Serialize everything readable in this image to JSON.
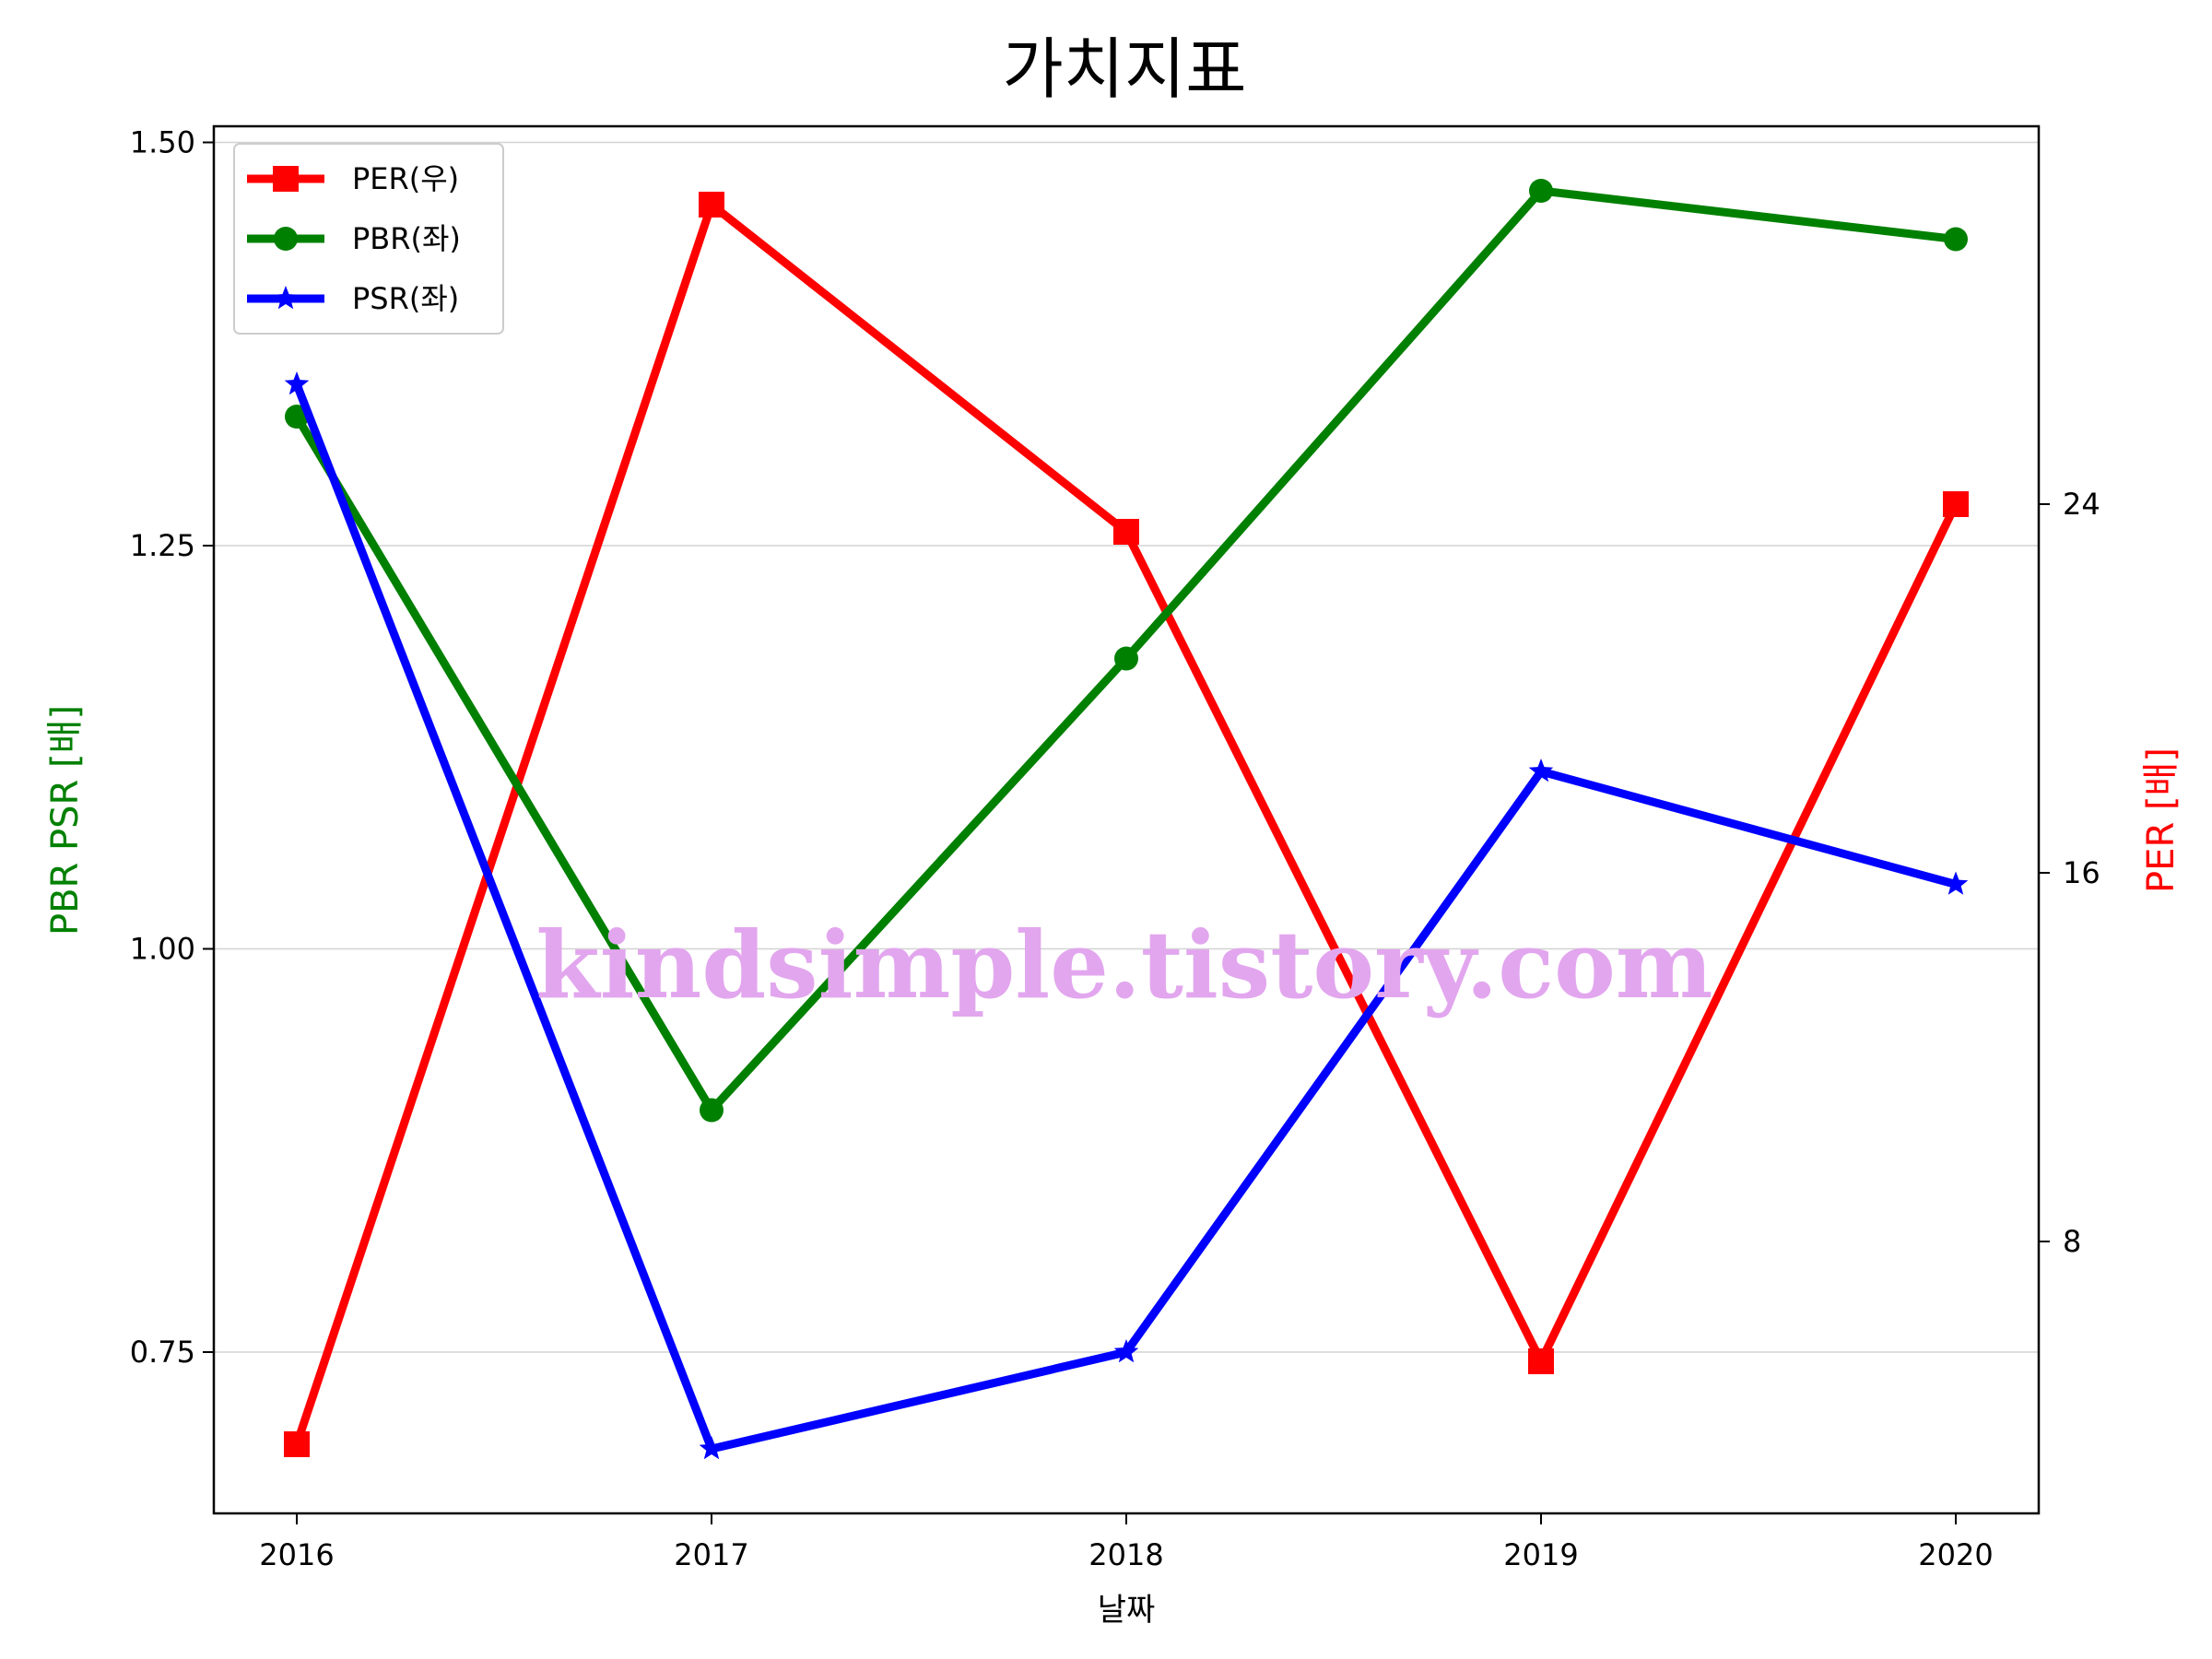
{
  "chart_data": {
    "type": "line",
    "title": "가치지표",
    "xlabel": "날짜",
    "ylabel_left": "PBR PSR [배]",
    "ylabel_right": "PER [배]",
    "categories": [
      "2016",
      "2017",
      "2018",
      "2019",
      "2020"
    ],
    "left_ylim": [
      0.65,
      1.51
    ],
    "left_ticks": [
      "0.75",
      "1.00",
      "1.25",
      "1.50"
    ],
    "right_ylim": [
      2.1,
      32.2
    ],
    "right_ticks": [
      "8",
      "16",
      "24"
    ],
    "grid": "horizontal",
    "legend_position": "top-left",
    "series": [
      {
        "name": "PER(우)",
        "axis": "right",
        "color": "#ff0000",
        "marker": "square",
        "values": [
          3.6,
          30.5,
          23.4,
          5.4,
          24.0
        ]
      },
      {
        "name": "PBR(좌)",
        "axis": "left",
        "color": "#008000",
        "marker": "circle",
        "values": [
          1.33,
          0.9,
          1.18,
          1.47,
          1.44
        ]
      },
      {
        "name": "PSR(좌)",
        "axis": "left",
        "color": "#0000ff",
        "marker": "star",
        "values": [
          1.35,
          0.69,
          0.75,
          1.11,
          1.04
        ]
      }
    ]
  },
  "watermark": "kindsimple.tistory.com"
}
